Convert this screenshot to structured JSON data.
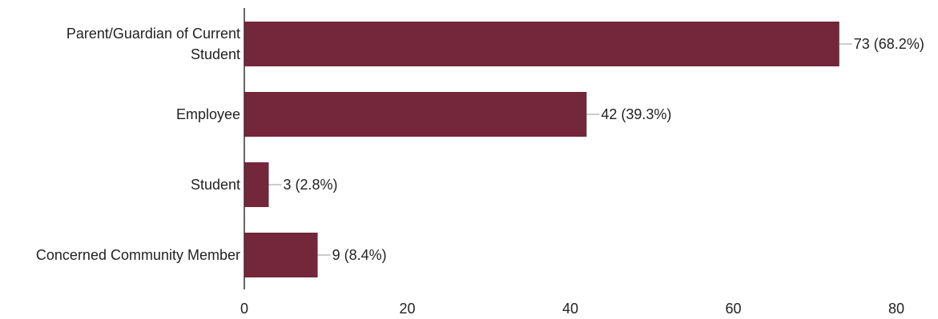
{
  "chart_data": {
    "type": "bar",
    "orientation": "horizontal",
    "categories": [
      "Parent/Guardian of Current Student",
      "Employee",
      "Student",
      "Concerned Community Member"
    ],
    "category_lines": [
      [
        "Parent/Guardian of Current",
        "Student"
      ],
      [
        "Employee"
      ],
      [
        "Student"
      ],
      [
        "Concerned Community Member"
      ]
    ],
    "values": [
      73,
      42,
      3,
      9
    ],
    "value_labels": [
      "73 (68.2%)",
      "42 (39.3%)",
      "3 (2.8%)",
      "9 (8.4%)"
    ],
    "xlim": [
      0,
      80
    ],
    "xticks": [
      0,
      20,
      40,
      60,
      80
    ],
    "title": "",
    "xlabel": "",
    "ylabel": "",
    "grid": false,
    "bar_color": "#74263a",
    "axis_color": "#333333",
    "leader_color": "#999999"
  }
}
